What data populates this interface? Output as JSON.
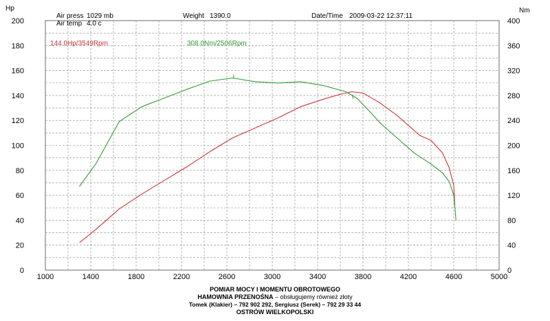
{
  "header": {
    "left_unit": "Hp",
    "right_unit": "Nm",
    "air_press_label": "Air press",
    "air_press_value": "1029 mb",
    "air_temp_label": "Air temp",
    "air_temp_value": "4.0 c",
    "weight_label": "Weight",
    "weight_value": "1390.0",
    "datetime_label": "Date/Time",
    "datetime_value": "2009-03-22 12:37:11"
  },
  "annotations": {
    "power_peak": "144.0Hp/3549Rpm",
    "torque_peak": "308.0Nm/2506Rpm"
  },
  "footer": {
    "line1": "POMIAR MOCY I MOMENTU OBROTOWEGO",
    "line2_bold": "HAMOWNIA PRZENOŚNA",
    "line2_rest": " – obsługujemy również złoty",
    "line3": "Tomek (Klakier) – 792 902 292,  Sergiusz (Serek) – 792 29 33 44",
    "line4": "OSTRÓW WIELKOPOLSKI"
  },
  "chart_data": {
    "type": "line",
    "x_ticks": [
      "1000",
      "1400",
      "1800",
      "2200",
      "2600",
      "3000",
      "3400",
      "3800",
      "4200",
      "4600",
      "5000"
    ],
    "y_left_ticks": [
      "0",
      "20",
      "40",
      "60",
      "80",
      "100",
      "120",
      "140",
      "160",
      "180",
      "200"
    ],
    "y_right_ticks": [
      "0",
      "40",
      "80",
      "120",
      "160",
      "200",
      "240",
      "280",
      "320",
      "360",
      "400"
    ],
    "xlim": [
      1000,
      5000
    ],
    "ylim_left": [
      0,
      200
    ],
    "ylim_right": [
      0,
      400
    ],
    "grid": true,
    "power_color": "#cc3333",
    "torque_color": "#339933",
    "series": [
      {
        "axis": "left",
        "color": "#cc3333",
        "x": [
          1300,
          1450,
          1650,
          1850,
          2050,
          2250,
          2450,
          2650,
          2850,
          3050,
          3250,
          3450,
          3600,
          3700,
          3800,
          3950,
          4100,
          4300,
          4400,
          4500,
          4560,
          4600,
          4610
        ],
        "values": [
          22,
          33,
          49,
          61,
          72,
          83,
          95,
          106,
          114,
          122,
          131,
          137,
          141,
          143,
          142,
          134,
          124,
          108,
          104,
          94,
          82,
          68,
          52
        ]
      },
      {
        "axis": "right",
        "color": "#339933",
        "x": [
          1300,
          1450,
          1650,
          1850,
          2050,
          2250,
          2450,
          2650,
          2850,
          3050,
          3250,
          3450,
          3650,
          3750,
          3850,
          3950,
          4100,
          4250,
          4400,
          4500,
          4560,
          4600,
          4620
        ],
        "values": [
          134,
          172,
          238,
          262,
          276,
          290,
          303,
          308,
          302,
          300,
          302,
          296,
          286,
          275,
          256,
          236,
          212,
          188,
          170,
          156,
          142,
          120,
          80
        ]
      }
    ]
  }
}
